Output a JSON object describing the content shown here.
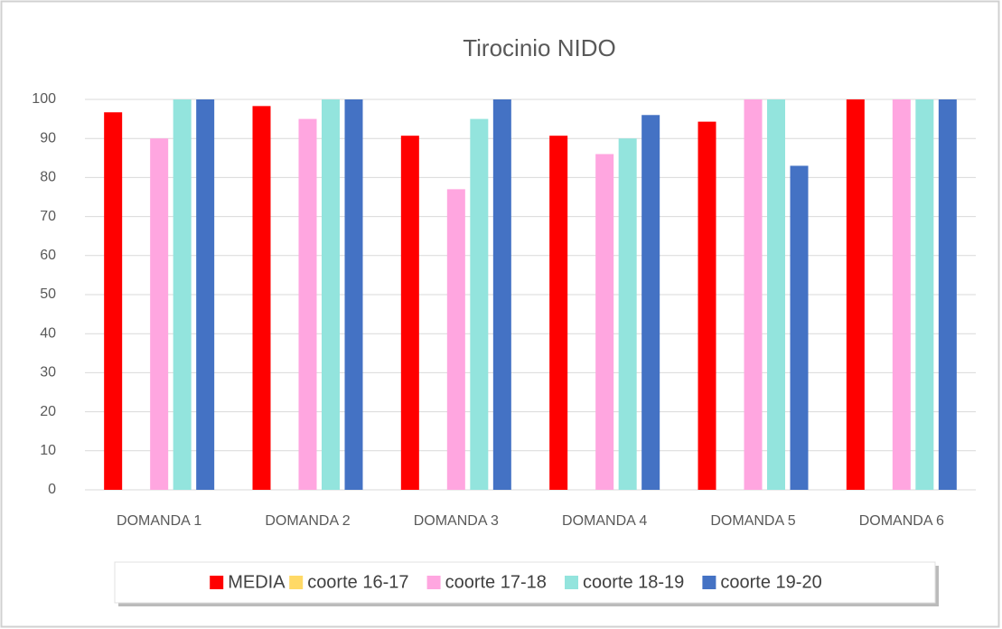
{
  "chart_data": {
    "type": "bar",
    "title": "Tirocinio NIDO",
    "categories": [
      "DOMANDA 1",
      "DOMANDA 2",
      "DOMANDA 3",
      "DOMANDA 4",
      "DOMANDA 5",
      "DOMANDA 6"
    ],
    "series": [
      {
        "name": "MEDIA",
        "color": "#ff0000",
        "values": [
          96.7,
          98.3,
          90.7,
          90.7,
          94.3,
          100
        ]
      },
      {
        "name": "coorte 16-17",
        "color": "#ffd966",
        "values": [
          null,
          null,
          null,
          null,
          null,
          null
        ]
      },
      {
        "name": "coorte 17-18",
        "color": "#ffa6e0",
        "values": [
          90,
          95,
          77,
          86,
          100,
          100
        ]
      },
      {
        "name": "coorte 18-19",
        "color": "#93e4dd",
        "values": [
          100,
          100,
          95,
          90,
          100,
          100
        ]
      },
      {
        "name": "coorte 19-20",
        "color": "#4472c4",
        "values": [
          100,
          100,
          100,
          96,
          83,
          100
        ]
      }
    ],
    "ylim": [
      0,
      100
    ],
    "yticks": [
      0,
      10,
      20,
      30,
      40,
      50,
      60,
      70,
      80,
      90,
      100
    ],
    "grid": true,
    "legend": "bottom"
  }
}
